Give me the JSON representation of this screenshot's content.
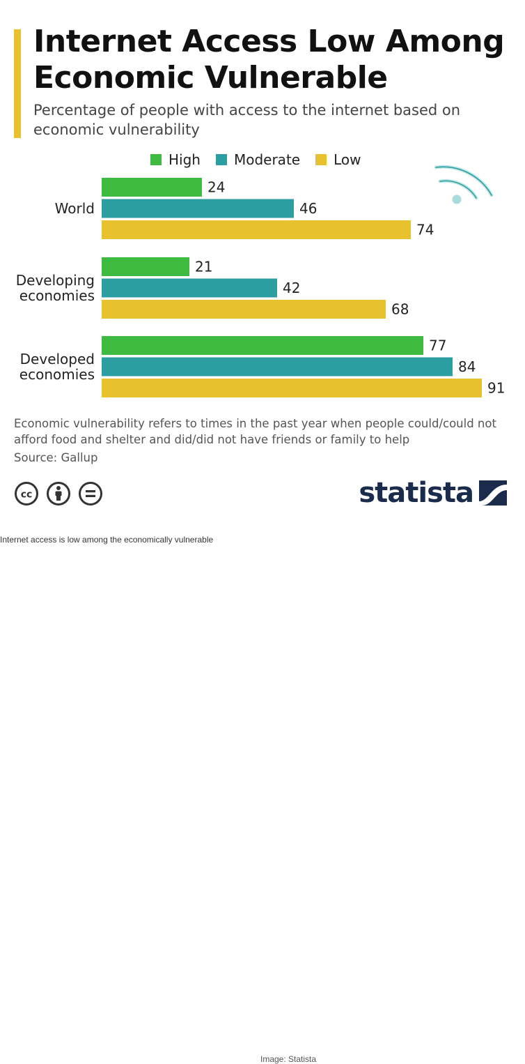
{
  "header": {
    "title": "Internet Access Low Among Economic Vulnerable",
    "subtitle": "Percentage of people with access to the internet based on economic vulnerability"
  },
  "colors": {
    "accent": "#e8c22e",
    "high": "#3dba3f",
    "moderate": "#2a9ea0",
    "low": "#e8c22e",
    "brand": "#1a2b4c"
  },
  "chart_data": {
    "type": "bar",
    "orientation": "horizontal",
    "title": "Internet Access Low Among Economic Vulnerable",
    "subtitle": "Percentage of people with access to the internet based on economic vulnerability",
    "categories": [
      [
        "World"
      ],
      [
        "Developing",
        "economies"
      ],
      [
        "Developed",
        "economies"
      ]
    ],
    "series": [
      {
        "name": "High",
        "color": "#3dba3f",
        "values": [
          24,
          21,
          77
        ]
      },
      {
        "name": "Moderate",
        "color": "#2a9ea0",
        "values": [
          46,
          42,
          84
        ]
      },
      {
        "name": "Low",
        "color": "#e8c22e",
        "values": [
          74,
          68,
          91
        ]
      }
    ],
    "xlim": [
      0,
      100
    ],
    "grid": false,
    "legend_position": "top"
  },
  "legend": {
    "items": [
      "High",
      "Moderate",
      "Low"
    ]
  },
  "footer": {
    "note": "Economic vulnerability refers to times in the past year when people could/could not afford food and shelter and did/did not have friends or family to help",
    "source": "Source: Gallup",
    "brand": "statista",
    "icons": [
      "creative-commons-icon",
      "attribution-icon",
      "no-derivatives-icon"
    ]
  },
  "page_caption": "Internet access is low among the economically vulnerable",
  "image_credit": "Image: Statista"
}
